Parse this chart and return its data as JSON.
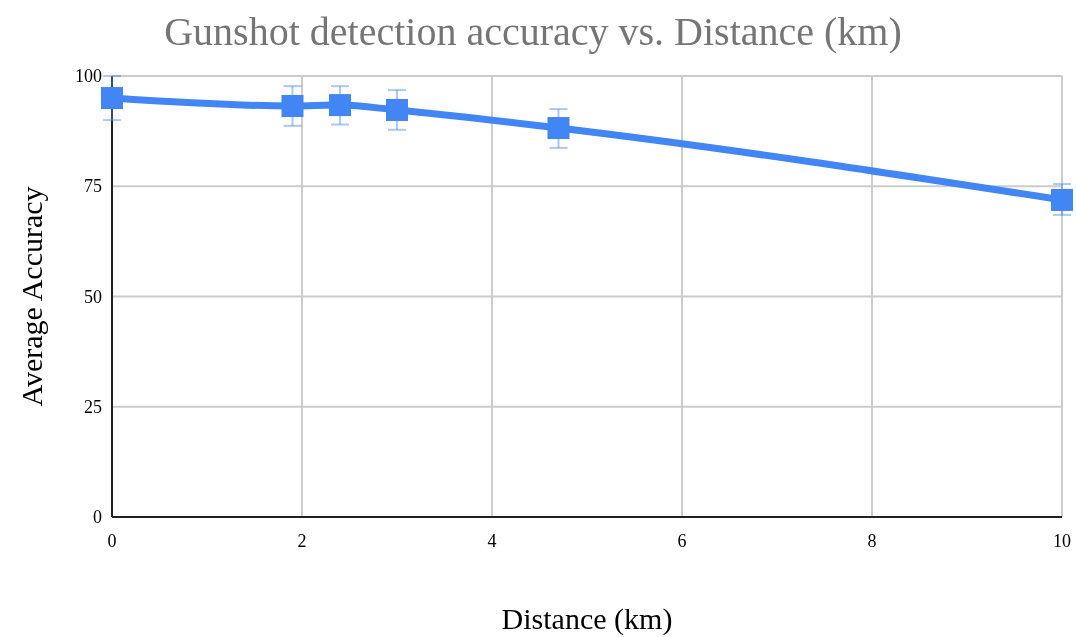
{
  "chart_data": {
    "type": "line",
    "title": "Gunshot detection accuracy vs. Distance (km)",
    "xlabel": "Distance (km)",
    "ylabel": "Average Accuracy",
    "x": [
      0,
      1.9,
      2.4,
      3,
      4.7,
      10
    ],
    "series": [
      {
        "color": "#4285f4",
        "values": [
          95,
          93.2,
          93.4,
          92.3,
          88.2,
          71.9
        ],
        "errors": [
          [
            90,
            100
          ],
          [
            88.7,
            97.7
          ],
          [
            89,
            97.7
          ],
          [
            87.8,
            96.8
          ],
          [
            83.7,
            92.5
          ],
          [
            68.5,
            75.5
          ]
        ]
      }
    ],
    "xlim": [
      0,
      10
    ],
    "xticks": [
      0,
      2,
      4,
      6,
      8,
      10
    ],
    "ylim": [
      0,
      100
    ],
    "yticks": [
      0,
      25,
      50,
      75,
      100
    ],
    "grid": true,
    "marker": "square",
    "line_style": "solid"
  }
}
